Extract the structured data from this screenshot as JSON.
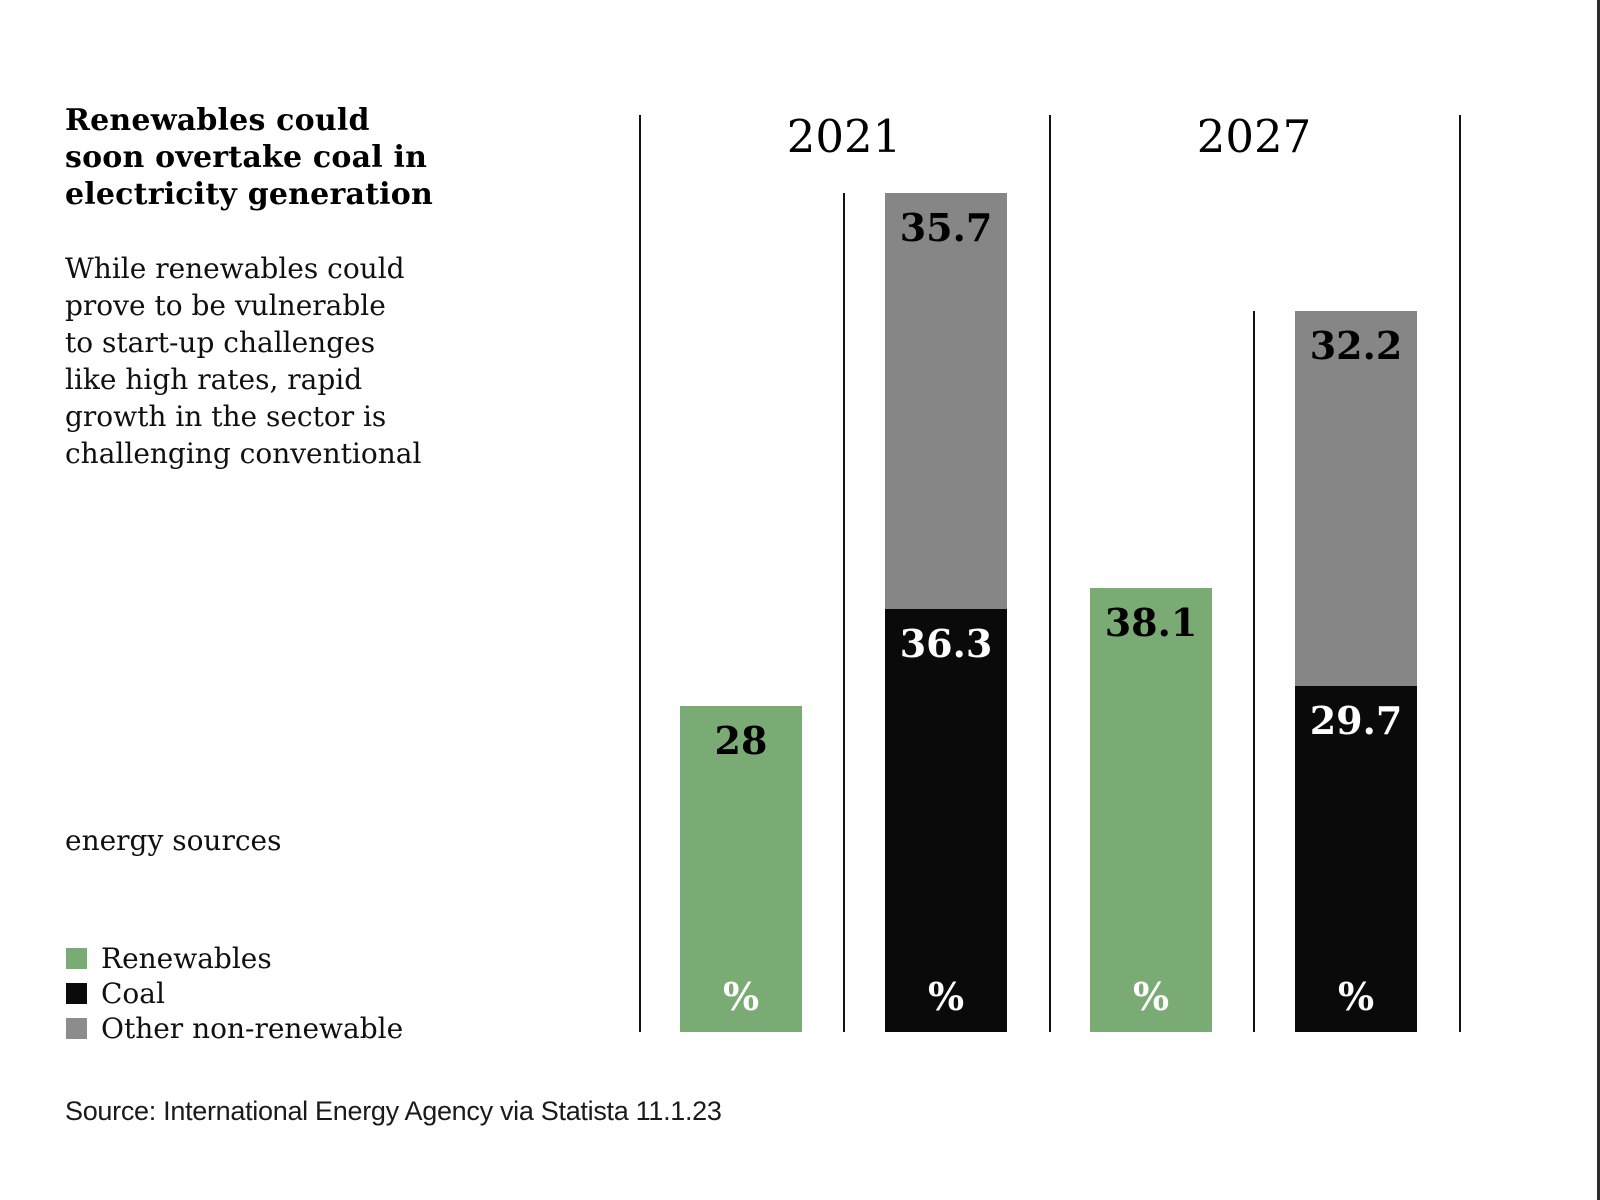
{
  "sidebar": {
    "title_lines": [
      "Renewables could",
      "soon overtake coal in",
      "electricity generation"
    ],
    "description_lines": [
      "While renewables could",
      "prove to be vulnerable",
      "to start-up challenges",
      "like high rates, rapid",
      "growth in the sector is",
      "challenging conventional"
    ],
    "description_tail": "energy sources",
    "legend": [
      {
        "label": "Renewables",
        "color": "#7aab74"
      },
      {
        "label": "Coal",
        "color": "#0a0a0a"
      },
      {
        "label": "Other non-renewable",
        "color": "#8c8c8c"
      }
    ]
  },
  "source_line": "Source: International Energy Agency via Statista 11.1.23",
  "chart_data": {
    "type": "bar",
    "title": "Renewables could soon overtake coal in electricity generation",
    "unit": "%",
    "categories": [
      "2021",
      "2027"
    ],
    "series": [
      {
        "name": "Renewables",
        "color": "#7aab74",
        "values": [
          28,
          38.1
        ],
        "labels": [
          "28",
          "38.1"
        ],
        "label_text_color": "#000000",
        "stack": "standalone"
      },
      {
        "name": "Coal",
        "color": "#0a0a0a",
        "values": [
          36.3,
          29.7
        ],
        "labels": [
          "36.3",
          "29.7"
        ],
        "label_text_color": "#ffffff",
        "stack": "non-renewable"
      },
      {
        "name": "Other non-renewable",
        "color": "#868686",
        "values": [
          35.7,
          32.2
        ],
        "labels": [
          "35.7",
          "32.2"
        ],
        "label_text_color": "#000000",
        "stack": "non-renewable"
      }
    ],
    "bar_bottom_symbol": "%",
    "ylim": [
      0,
      100
    ],
    "grid": false,
    "y_axis_visible": false,
    "legend_position": "bottom-left",
    "notes": "Coal stacked below Other non-renewable; Renewables shown as separate bar per year"
  }
}
